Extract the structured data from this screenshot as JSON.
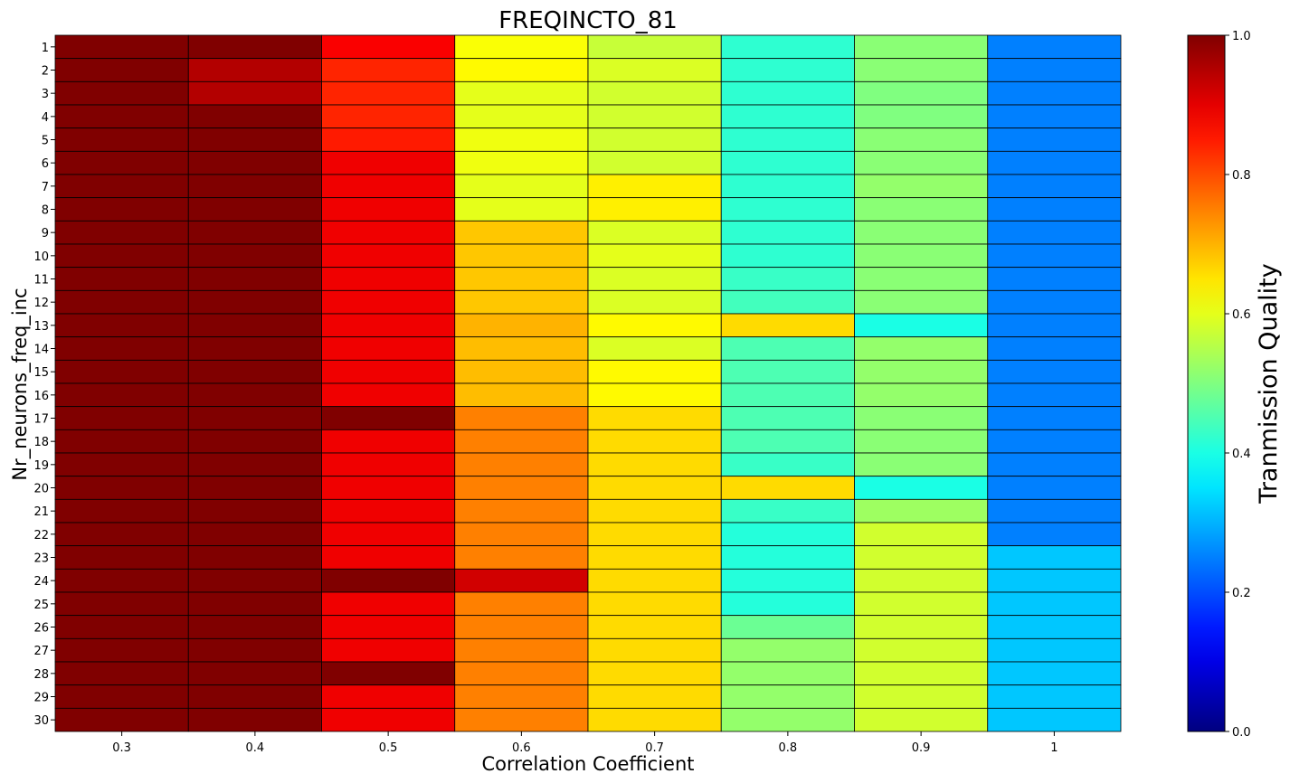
{
  "chart_data": {
    "type": "heatmap",
    "title": "FREQINCTO_81",
    "xlabel": "Correlation Coefficient",
    "ylabel": "Nr_neurons_freq_inc",
    "colorbar_label": "Tranmission Quality",
    "colormap": "jet",
    "clim": [
      0,
      1
    ],
    "colorbar_ticks": [
      "0.0",
      "0.2",
      "0.4",
      "0.6",
      "0.8",
      "1.0"
    ],
    "x": [
      "0.3",
      "0.4",
      "0.5",
      "0.6",
      "0.7",
      "0.8",
      "0.9",
      "1"
    ],
    "y": [
      "1",
      "2",
      "3",
      "4",
      "5",
      "6",
      "7",
      "8",
      "9",
      "10",
      "11",
      "12",
      "13",
      "14",
      "15",
      "16",
      "17",
      "18",
      "19",
      "20",
      "21",
      "22",
      "23",
      "24",
      "25",
      "26",
      "27",
      "28",
      "29",
      "30"
    ],
    "values": [
      [
        1.0,
        1.0,
        0.88,
        0.62,
        0.57,
        0.42,
        0.51,
        0.25
      ],
      [
        1.0,
        0.95,
        0.84,
        0.63,
        0.59,
        0.42,
        0.51,
        0.25
      ],
      [
        1.0,
        0.95,
        0.84,
        0.6,
        0.58,
        0.42,
        0.5,
        0.25
      ],
      [
        1.0,
        1.0,
        0.84,
        0.6,
        0.58,
        0.42,
        0.5,
        0.25
      ],
      [
        1.0,
        1.0,
        0.85,
        0.61,
        0.58,
        0.42,
        0.51,
        0.25
      ],
      [
        1.0,
        1.0,
        0.89,
        0.61,
        0.58,
        0.42,
        0.51,
        0.25
      ],
      [
        1.0,
        1.0,
        0.89,
        0.6,
        0.64,
        0.42,
        0.52,
        0.25
      ],
      [
        1.0,
        1.0,
        0.89,
        0.6,
        0.64,
        0.42,
        0.51,
        0.25
      ],
      [
        1.0,
        1.0,
        0.89,
        0.68,
        0.59,
        0.42,
        0.51,
        0.25
      ],
      [
        1.0,
        1.0,
        0.89,
        0.68,
        0.6,
        0.42,
        0.51,
        0.25
      ],
      [
        1.0,
        1.0,
        0.89,
        0.68,
        0.59,
        0.43,
        0.51,
        0.25
      ],
      [
        1.0,
        1.0,
        0.89,
        0.68,
        0.59,
        0.44,
        0.51,
        0.25
      ],
      [
        1.0,
        1.0,
        0.89,
        0.7,
        0.63,
        0.66,
        0.4,
        0.25
      ],
      [
        1.0,
        1.0,
        0.89,
        0.69,
        0.59,
        0.45,
        0.52,
        0.25
      ],
      [
        1.0,
        1.0,
        0.89,
        0.69,
        0.63,
        0.45,
        0.52,
        0.25
      ],
      [
        1.0,
        1.0,
        0.89,
        0.69,
        0.63,
        0.45,
        0.52,
        0.25
      ],
      [
        1.0,
        1.0,
        1.0,
        0.75,
        0.66,
        0.45,
        0.51,
        0.25
      ],
      [
        1.0,
        1.0,
        0.89,
        0.75,
        0.66,
        0.45,
        0.51,
        0.25
      ],
      [
        1.0,
        1.0,
        0.89,
        0.75,
        0.66,
        0.43,
        0.51,
        0.25
      ],
      [
        1.0,
        1.0,
        0.89,
        0.75,
        0.66,
        0.66,
        0.4,
        0.25
      ],
      [
        1.0,
        1.0,
        0.89,
        0.75,
        0.66,
        0.43,
        0.53,
        0.25
      ],
      [
        1.0,
        1.0,
        0.89,
        0.75,
        0.66,
        0.41,
        0.58,
        0.25
      ],
      [
        1.0,
        1.0,
        0.89,
        0.75,
        0.66,
        0.41,
        0.58,
        0.32
      ],
      [
        1.0,
        1.0,
        1.0,
        0.92,
        0.66,
        0.41,
        0.58,
        0.32
      ],
      [
        1.0,
        1.0,
        0.89,
        0.75,
        0.66,
        0.41,
        0.58,
        0.32
      ],
      [
        1.0,
        1.0,
        0.89,
        0.75,
        0.66,
        0.48,
        0.58,
        0.32
      ],
      [
        1.0,
        1.0,
        0.89,
        0.75,
        0.66,
        0.52,
        0.58,
        0.32
      ],
      [
        1.0,
        1.0,
        1.0,
        0.75,
        0.66,
        0.52,
        0.58,
        0.32
      ],
      [
        1.0,
        1.0,
        0.89,
        0.75,
        0.66,
        0.52,
        0.58,
        0.32
      ],
      [
        1.0,
        1.0,
        0.89,
        0.75,
        0.66,
        0.52,
        0.58,
        0.32
      ]
    ]
  }
}
